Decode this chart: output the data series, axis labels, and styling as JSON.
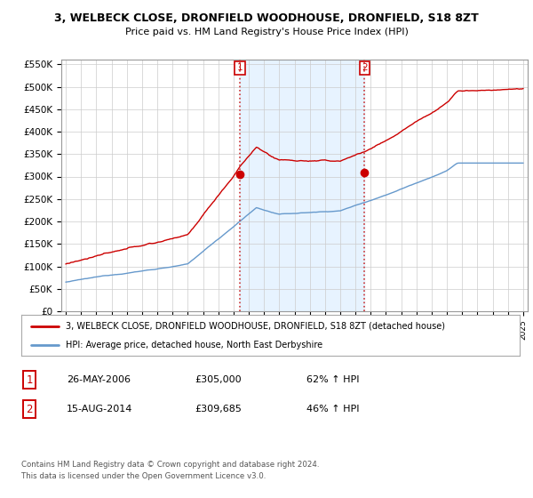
{
  "title": "3, WELBECK CLOSE, DRONFIELD WOODHOUSE, DRONFIELD, S18 8ZT",
  "subtitle": "Price paid vs. HM Land Registry's House Price Index (HPI)",
  "red_label": "3, WELBECK CLOSE, DRONFIELD WOODHOUSE, DRONFIELD, S18 8ZT (detached house)",
  "blue_label": "HPI: Average price, detached house, North East Derbyshire",
  "transaction1_date": "26-MAY-2006",
  "transaction1_price": "£305,000",
  "transaction1_hpi": "62% ↑ HPI",
  "transaction2_date": "15-AUG-2014",
  "transaction2_price": "£309,685",
  "transaction2_hpi": "46% ↑ HPI",
  "footer": "Contains HM Land Registry data © Crown copyright and database right 2024.\nThis data is licensed under the Open Government Licence v3.0.",
  "red_color": "#cc0000",
  "blue_color": "#6699cc",
  "vline_color": "#cc3333",
  "shade_color": "#ddeeff",
  "ylim": [
    0,
    560000
  ],
  "yticks": [
    0,
    50000,
    100000,
    150000,
    200000,
    250000,
    300000,
    350000,
    400000,
    450000,
    500000,
    550000
  ],
  "vline1_x": 2006.4,
  "vline2_x": 2014.6,
  "marker1_y": 305000,
  "marker2_y": 309685,
  "background_color": "#ffffff",
  "grid_color": "#cccccc",
  "xlim_left": 1994.7,
  "xlim_right": 2025.3
}
